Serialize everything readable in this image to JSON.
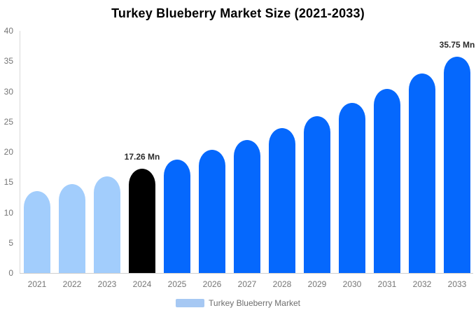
{
  "chart_data": {
    "type": "bar",
    "title": "Turkey Blueberry Market Size (2021-2033)",
    "categories": [
      "2021",
      "2022",
      "2023",
      "2024",
      "2025",
      "2026",
      "2027",
      "2028",
      "2029",
      "2030",
      "2031",
      "2032",
      "2033"
    ],
    "values": [
      13.5,
      14.7,
      15.9,
      17.26,
      18.7,
      20.3,
      22.0,
      23.9,
      25.9,
      28.1,
      30.4,
      33.0,
      35.75
    ],
    "point_colors": [
      "#a2cdfc",
      "#a2cdfc",
      "#a2cdfc",
      "#000000",
      "#0568fd",
      "#0568fd",
      "#0568fd",
      "#0568fd",
      "#0568fd",
      "#0568fd",
      "#0568fd",
      "#0568fd",
      "#0568fd"
    ],
    "data_labels": [
      "",
      "",
      "",
      "17.26 Mn",
      "",
      "",
      "",
      "",
      "",
      "",
      "",
      "",
      "35.75 Mn"
    ],
    "unit": "Mn",
    "ylim": [
      0,
      40
    ],
    "yticks": [
      0,
      5,
      10,
      15,
      20,
      25,
      30,
      35,
      40
    ],
    "grid": false,
    "legend": {
      "label": "Turkey Blueberry Market",
      "swatch_color": "#a6c8f3",
      "position": "bottom"
    },
    "colors": {
      "historical_bar": "#a2cdfc",
      "highlight_bar": "#000000",
      "forecast_bar": "#0568fd",
      "axis_line": "#d9d9d9",
      "tick_text": "#757575",
      "value_label_text": "#2b2b2b",
      "background": "#ffffff"
    }
  }
}
